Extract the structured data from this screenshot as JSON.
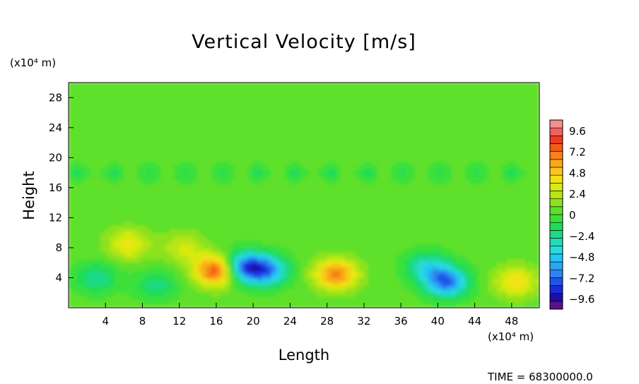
{
  "chart_data": {
    "type": "heatmap",
    "title": "Vertical Velocity [m/s]",
    "xlabel": "Length",
    "ylabel": "Height",
    "x_unit": "(x10⁴ m)",
    "y_unit": "(x10⁴ m)",
    "time_label": "TIME =  68300000.0",
    "xlim": [
      0,
      51
    ],
    "ylim": [
      0,
      30
    ],
    "x_ticks": [
      4,
      8,
      12,
      16,
      20,
      24,
      28,
      32,
      36,
      40,
      44,
      48
    ],
    "y_ticks": [
      4,
      8,
      12,
      16,
      20,
      24,
      28
    ],
    "colorbar": {
      "ticks": [
        9.6,
        7.2,
        4.8,
        2.4,
        0,
        -2.4,
        -4.8,
        -7.2,
        -9.6
      ],
      "tick_labels": [
        "9.6",
        "7.2",
        "4.8",
        "2.4",
        "0",
        "−2.4",
        "−4.8",
        "−7.2",
        "−9.6"
      ],
      "min": -10.8,
      "max": 10.8,
      "colors": [
        "#5a108a",
        "#1d0ea8",
        "#1a2ad8",
        "#1f55ea",
        "#2f82f0",
        "#2aa6f4",
        "#20c8f2",
        "#2adadf",
        "#22dcb5",
        "#1ed985",
        "#22dc58",
        "#3ae03a",
        "#5fe02a",
        "#8ce21e",
        "#b5e614",
        "#d8ea10",
        "#f2e214",
        "#f8c818",
        "#f8a818",
        "#f88218",
        "#f45a18",
        "#ee3a20",
        "#f06060",
        "#f49090"
      ]
    },
    "features": [
      {
        "x": 16.0,
        "y": 5.0,
        "value": 8.0
      },
      {
        "x": 19.0,
        "y": 5.5,
        "value": -7.5
      },
      {
        "x": 21.5,
        "y": 5.0,
        "value": -6.5
      },
      {
        "x": 29.0,
        "y": 4.5,
        "value": 6.5
      },
      {
        "x": 41.0,
        "y": 3.5,
        "value": -7.5
      },
      {
        "x": 48.5,
        "y": 3.5,
        "value": 4.0
      },
      {
        "x": 6.5,
        "y": 8.5,
        "value": 3.5
      },
      {
        "x": 12.5,
        "y": 8.0,
        "value": 2.5
      },
      {
        "x": 38.8,
        "y": 5.5,
        "value": -4.0
      },
      {
        "x": 3.0,
        "y": 4.0,
        "value": -3.0
      },
      {
        "x": 9.5,
        "y": 3.0,
        "value": -2.5
      }
    ]
  }
}
